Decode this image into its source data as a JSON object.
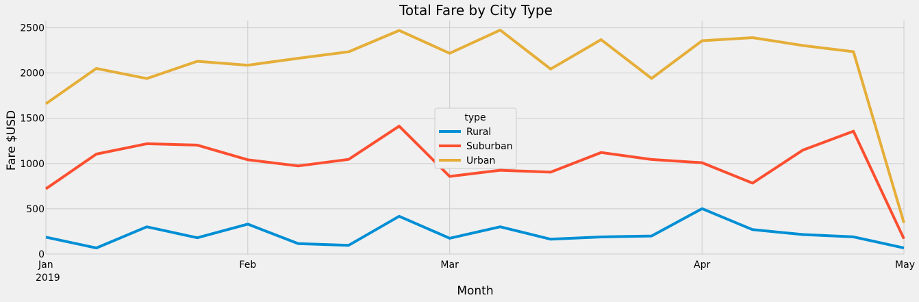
{
  "chart_data": {
    "type": "line",
    "title": "Total Fare by City Type",
    "xlabel": "Month",
    "ylabel": "Fare $USD",
    "xlim": [
      "2019-01-06",
      "2019-05-05"
    ],
    "ylim": [
      0,
      2580
    ],
    "yticks": [
      0,
      500,
      1000,
      1500,
      2000,
      2500
    ],
    "xticks": [
      {
        "date": "2019-01-06",
        "label": "Jan",
        "sublabel": "2019"
      },
      {
        "date": "2019-02-03",
        "label": "Feb",
        "sublabel": ""
      },
      {
        "date": "2019-03-03",
        "label": "Mar",
        "sublabel": ""
      },
      {
        "date": "2019-04-07",
        "label": "Apr",
        "sublabel": ""
      },
      {
        "date": "2019-05-05",
        "label": "May",
        "sublabel": ""
      }
    ],
    "grid": true,
    "legend": {
      "title": "type",
      "position": "center"
    },
    "x": [
      "2019-01-06",
      "2019-01-13",
      "2019-01-20",
      "2019-01-27",
      "2019-02-03",
      "2019-02-10",
      "2019-02-17",
      "2019-02-24",
      "2019-03-03",
      "2019-03-10",
      "2019-03-17",
      "2019-03-24",
      "2019-03-31",
      "2019-04-07",
      "2019-04-14",
      "2019-04-21",
      "2019-04-28",
      "2019-05-05"
    ],
    "series": [
      {
        "name": "Rural",
        "color": "#008fd5",
        "values": [
          187,
          67,
          301,
          180,
          331,
          115,
          97,
          418,
          175,
          301,
          164,
          189,
          200,
          502,
          270,
          216,
          190,
          67
        ]
      },
      {
        "name": "Suburban",
        "color": "#fc4f30",
        "values": [
          721,
          1105,
          1219,
          1204,
          1042,
          974,
          1046,
          1413,
          858,
          926,
          905,
          1122,
          1045,
          1009,
          784,
          1149,
          1357,
          169
        ]
      },
      {
        "name": "Urban",
        "color": "#e5ae38",
        "values": [
          1661,
          2051,
          1939,
          2130,
          2087,
          2163,
          2235,
          2470,
          2218,
          2475,
          2044,
          2369,
          1941,
          2357,
          2391,
          2304,
          2236,
          345
        ]
      }
    ]
  }
}
